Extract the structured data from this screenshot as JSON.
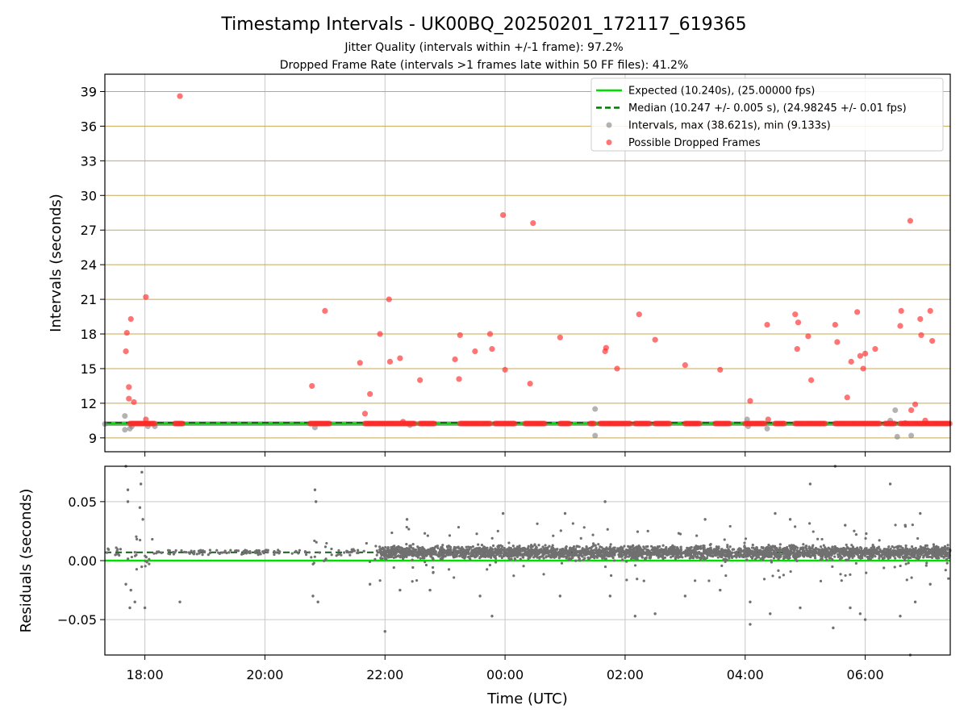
{
  "header": {
    "title": "Timestamp Intervals - UK00BQ_20250201_172117_619365",
    "subtitle1": "Jitter Quality (intervals within +/-1 frame): 97.2%",
    "subtitle2": "Dropped Frame Rate (intervals >1 frames late within 50 FF files): 41.2%"
  },
  "colors": {
    "expected": "#00e000",
    "median": "#007a00",
    "intervals": "#808080",
    "dropped": "#ff2a2a",
    "hgrid_top": "#c8a850",
    "grid": "#c8c8c8",
    "residuals": "#707070"
  },
  "chart_data": [
    {
      "type": "scatter",
      "panel": "intervals",
      "ylabel": "Intervals (seconds)",
      "xlabel": "",
      "x_unit": "time (UTC)",
      "xlim": [
        "17:20",
        "07:25"
      ],
      "ylim": [
        7.8,
        40.5
      ],
      "yticks": [
        9,
        12,
        15,
        18,
        21,
        24,
        27,
        30,
        33,
        36,
        39
      ],
      "xticks": [
        "18:00",
        "20:00",
        "22:00",
        "00:00",
        "02:00",
        "04:00",
        "06:00"
      ],
      "grid": "horizontal gold lines at y ticks, vertical gray lines at x ticks",
      "legend_position": "top-right",
      "legend": [
        "Expected (10.240s), (25.00000 fps)",
        "Median (10.247 +/- 0.005 s), (24.98245 +/- 0.01 fps)",
        "Intervals, max (38.621s), min (9.133s)",
        "Possible Dropped Frames"
      ],
      "reference_lines": {
        "expected": 10.24,
        "median": 10.247
      },
      "clusters_dropped_at_10_24": [
        [
          "17:45",
          "18:10"
        ],
        [
          "18:30",
          "18:38"
        ],
        [
          "20:45",
          "21:05"
        ],
        [
          "21:40",
          "22:30"
        ],
        [
          "22:35",
          "22:50"
        ],
        [
          "23:15",
          "23:45"
        ],
        [
          "23:50",
          "00:10"
        ],
        [
          "00:20",
          "00:40"
        ],
        [
          "00:55",
          "01:05"
        ],
        [
          "01:25",
          "01:30"
        ],
        [
          "01:35",
          "02:05"
        ],
        [
          "02:10",
          "02:25"
        ],
        [
          "02:30",
          "02:45"
        ],
        [
          "03:00",
          "03:15"
        ],
        [
          "03:30",
          "03:45"
        ],
        [
          "04:00",
          "04:20"
        ],
        [
          "04:30",
          "04:40"
        ],
        [
          "04:50",
          "05:20"
        ],
        [
          "05:30",
          "06:15"
        ],
        [
          "06:20",
          "06:30"
        ],
        [
          "06:35",
          "07:25"
        ]
      ],
      "dropped": [
        [
          "17:41",
          16.5
        ],
        [
          "17:42",
          18.1
        ],
        [
          "17:44",
          13.4
        ],
        [
          "17:44",
          12.4
        ],
        [
          "17:46",
          19.3
        ],
        [
          "17:49",
          12.1
        ],
        [
          "18:01",
          21.2
        ],
        [
          "18:01",
          10.6
        ],
        [
          "18:35",
          38.6
        ],
        [
          "20:47",
          13.5
        ],
        [
          "21:00",
          20.0
        ],
        [
          "21:35",
          15.5
        ],
        [
          "21:40",
          11.1
        ],
        [
          "21:45",
          12.8
        ],
        [
          "21:55",
          18.0
        ],
        [
          "22:04",
          21.0
        ],
        [
          "22:05",
          15.6
        ],
        [
          "22:15",
          15.9
        ],
        [
          "22:18",
          10.4
        ],
        [
          "22:35",
          14.0
        ],
        [
          "23:10",
          15.8
        ],
        [
          "23:15",
          17.9
        ],
        [
          "23:14",
          14.1
        ],
        [
          "23:30",
          16.5
        ],
        [
          "23:45",
          18.0
        ],
        [
          "23:47",
          16.7
        ],
        [
          "23:58",
          28.3
        ],
        [
          "00:00",
          14.9
        ],
        [
          "00:25",
          13.7
        ],
        [
          "00:28",
          27.6
        ],
        [
          "00:55",
          17.7
        ],
        [
          "01:40",
          16.5
        ],
        [
          "01:41",
          16.8
        ],
        [
          "01:52",
          15.0
        ],
        [
          "02:14",
          19.7
        ],
        [
          "02:30",
          17.5
        ],
        [
          "03:00",
          15.3
        ],
        [
          "03:35",
          14.9
        ],
        [
          "04:05",
          12.2
        ],
        [
          "04:22",
          18.8
        ],
        [
          "04:23",
          10.6
        ],
        [
          "04:50",
          19.7
        ],
        [
          "04:52",
          16.7
        ],
        [
          "04:53",
          19.0
        ],
        [
          "05:03",
          17.8
        ],
        [
          "05:06",
          14.0
        ],
        [
          "05:30",
          18.8
        ],
        [
          "05:32",
          17.3
        ],
        [
          "05:42",
          12.5
        ],
        [
          "05:46",
          15.6
        ],
        [
          "05:52",
          19.9
        ],
        [
          "05:55",
          16.1
        ],
        [
          "05:58",
          15.0
        ],
        [
          "06:00",
          16.3
        ],
        [
          "06:10",
          16.7
        ],
        [
          "06:35",
          18.7
        ],
        [
          "06:36",
          20.0
        ],
        [
          "06:45",
          27.8
        ],
        [
          "06:46",
          11.4
        ],
        [
          "06:50",
          11.9
        ],
        [
          "06:55",
          19.3
        ],
        [
          "06:56",
          17.9
        ],
        [
          "07:00",
          10.5
        ],
        [
          "07:05",
          20.0
        ],
        [
          "07:07",
          17.4
        ]
      ],
      "intervals": [
        [
          "17:20",
          10.2
        ],
        [
          "17:40",
          10.9
        ],
        [
          "17:40",
          9.7
        ],
        [
          "17:45",
          9.8
        ],
        [
          "17:47",
          10.0
        ],
        [
          "18:03",
          10.0
        ],
        [
          "18:10",
          10.0
        ],
        [
          "20:50",
          9.9
        ],
        [
          "22:25",
          10.1
        ],
        [
          "01:30",
          11.5
        ],
        [
          "01:30",
          9.2
        ],
        [
          "04:02",
          10.6
        ],
        [
          "04:03",
          10.0
        ],
        [
          "04:22",
          9.8
        ],
        [
          "06:25",
          10.5
        ],
        [
          "06:30",
          11.4
        ],
        [
          "06:32",
          9.1
        ],
        [
          "06:46",
          9.2
        ],
        [
          "06:40",
          10.3
        ]
      ]
    },
    {
      "type": "scatter",
      "panel": "residuals",
      "ylabel": "Residuals (seconds)",
      "xlabel": "Time (UTC)",
      "xlim": [
        "17:20",
        "07:25"
      ],
      "ylim": [
        -0.08,
        0.08
      ],
      "yticks": [
        {
          "value": 0.05,
          "label": "0.05"
        },
        {
          "value": 0.0,
          "label": "0.00"
        },
        {
          "value": -0.05,
          "label": "−0.05"
        }
      ],
      "xticks": [
        "18:00",
        "20:00",
        "22:00",
        "00:00",
        "02:00",
        "04:00",
        "06:00"
      ],
      "grid": "gray lines at all ticks",
      "reference_lines": {
        "expected": 0.0,
        "median": 0.007
      },
      "dense_band": {
        "center": 0.007,
        "spread": 0.007,
        "from": "21:55",
        "to": "07:25"
      },
      "outliers": [
        [
          "17:41",
          0.08
        ],
        [
          "17:43",
          0.06
        ],
        [
          "17:43",
          0.05
        ],
        [
          "17:45",
          -0.04
        ],
        [
          "17:46",
          -0.025
        ],
        [
          "17:41",
          -0.02
        ],
        [
          "17:55",
          0.045
        ],
        [
          "17:56",
          0.065
        ],
        [
          "17:57",
          0.075
        ],
        [
          "18:00",
          -0.04
        ],
        [
          "17:50",
          -0.035
        ],
        [
          "17:58",
          0.035
        ],
        [
          "18:35",
          -0.035
        ],
        [
          "20:50",
          0.06
        ],
        [
          "20:51",
          0.05
        ],
        [
          "20:48",
          -0.03
        ],
        [
          "20:53",
          -0.035
        ],
        [
          "21:45",
          -0.02
        ],
        [
          "22:00",
          -0.06
        ],
        [
          "22:15",
          -0.025
        ],
        [
          "22:22",
          0.035
        ],
        [
          "22:45",
          -0.025
        ],
        [
          "23:35",
          -0.03
        ],
        [
          "23:47",
          -0.047
        ],
        [
          "23:58",
          0.04
        ],
        [
          "00:55",
          -0.03
        ],
        [
          "01:00",
          0.04
        ],
        [
          "01:40",
          0.05
        ],
        [
          "01:45",
          -0.03
        ],
        [
          "02:10",
          -0.047
        ],
        [
          "02:30",
          -0.045
        ],
        [
          "03:00",
          -0.03
        ],
        [
          "03:20",
          0.035
        ],
        [
          "03:35",
          -0.025
        ],
        [
          "04:05",
          -0.054
        ],
        [
          "04:05",
          -0.035
        ],
        [
          "04:25",
          -0.045
        ],
        [
          "04:30",
          0.04
        ],
        [
          "04:55",
          -0.04
        ],
        [
          "05:05",
          0.065
        ],
        [
          "05:28",
          -0.057
        ],
        [
          "05:30",
          0.08
        ],
        [
          "05:45",
          -0.04
        ],
        [
          "05:55",
          -0.045
        ],
        [
          "06:00",
          -0.05
        ],
        [
          "06:25",
          0.065
        ],
        [
          "06:35",
          -0.047
        ],
        [
          "06:45",
          -0.08
        ],
        [
          "06:50",
          -0.035
        ],
        [
          "06:55",
          0.04
        ],
        [
          "07:05",
          -0.02
        ],
        [
          "05:40",
          0.03
        ],
        [
          "04:45",
          0.035
        ],
        [
          "06:40",
          0.03
        ]
      ]
    }
  ]
}
